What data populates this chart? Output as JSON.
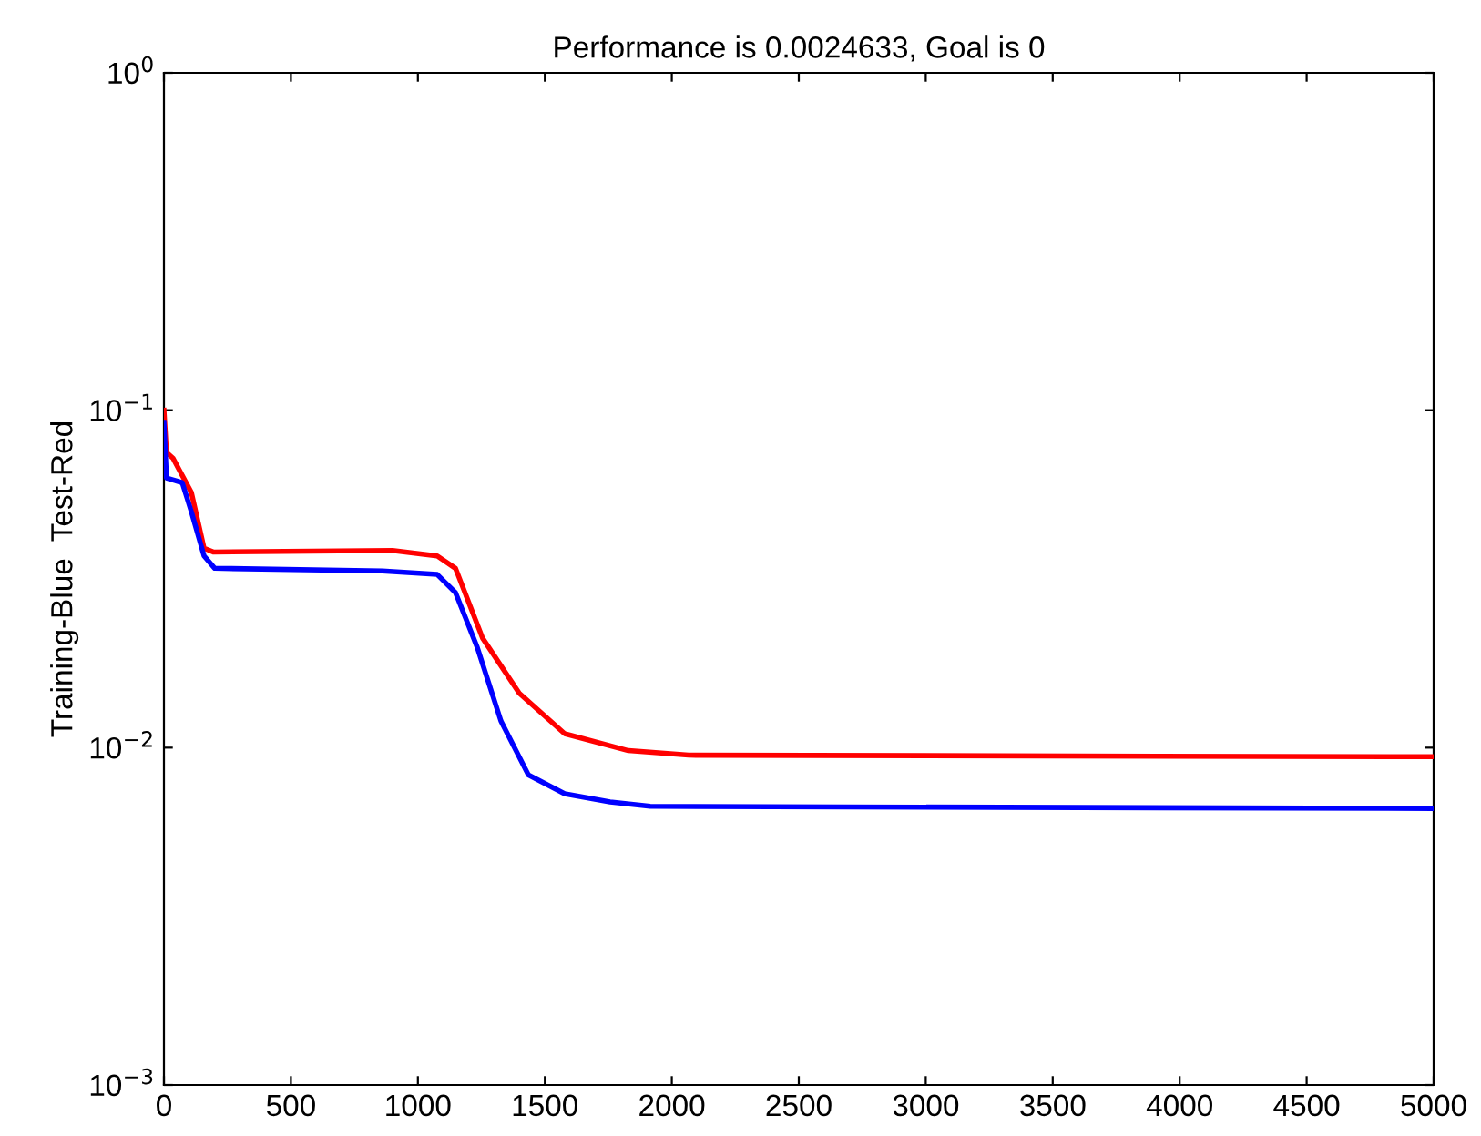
{
  "chart_data": {
    "type": "line",
    "title": "Performance is 0.0024633, Goal is 0",
    "ylabel": "Training-Blue  Test-Red",
    "log": "y",
    "grid": false,
    "line_style": "solid",
    "xlim": [
      0,
      5000
    ],
    "xticks": [
      0,
      500,
      1000,
      1500,
      2000,
      2500,
      3000,
      3500,
      4000,
      4500,
      5000
    ],
    "ylim": [
      0.001,
      1
    ],
    "yticks": [
      {
        "value": 0.001,
        "label": "10$^{−3}$"
      },
      {
        "value": 0.01,
        "label": "10$^{−2}$"
      },
      {
        "value": 0.1,
        "label": "10$^{−1}$"
      },
      {
        "value": 1,
        "label": "10$^{0}$"
      }
    ],
    "series": [
      {
        "color": "#0000ff",
        "x": [
          0,
          10,
          72,
          108,
          158,
          200,
          860,
          1076,
          1148,
          1234,
          1327,
          1435,
          1578,
          1757,
          1915,
          5000
        ],
        "values": [
          0.092,
          0.063,
          0.061,
          0.05,
          0.037,
          0.034,
          0.0334,
          0.0326,
          0.0288,
          0.0198,
          0.012,
          0.0083,
          0.0073,
          0.0069,
          0.0067,
          0.0066
        ]
      },
      {
        "color": "#ff0000",
        "x": [
          0,
          10,
          36,
          108,
          158,
          194,
          900,
          1076,
          1148,
          1255,
          1399,
          1578,
          1829,
          2066,
          5000
        ],
        "values": [
          0.1,
          0.075,
          0.072,
          0.057,
          0.039,
          0.038,
          0.0384,
          0.037,
          0.034,
          0.0211,
          0.0145,
          0.011,
          0.0098,
          0.0095,
          0.0094
        ]
      }
    ]
  }
}
